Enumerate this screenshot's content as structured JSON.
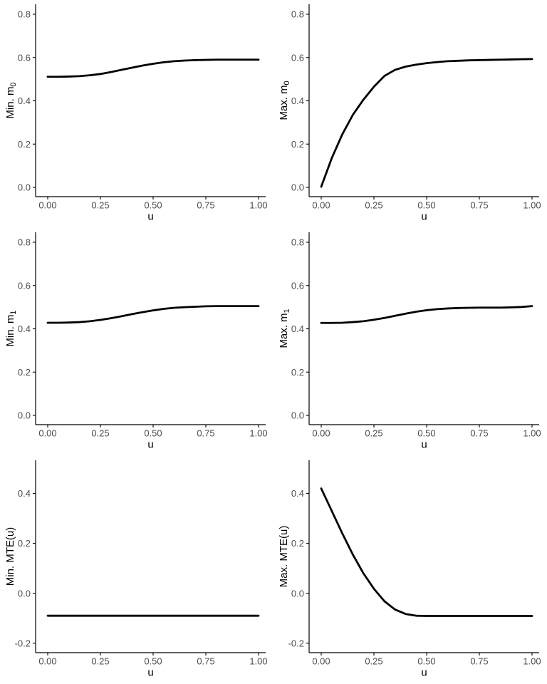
{
  "theme": {
    "background": "#ffffff",
    "curve_color": "#000000",
    "axis_line_color": "#000000",
    "tick_label_color": "#4d4d4d",
    "axis_title_color": "#000000"
  },
  "chart_data": [
    {
      "type": "line",
      "panel": "row1-col1",
      "ylabel": "Min. m",
      "ylabel_sub": "0",
      "xlabel": "u",
      "grid": false,
      "legend": false,
      "xdomain": [
        -0.0574,
        1.0338
      ],
      "ydomain": [
        -0.0428,
        0.846
      ],
      "x_ticks": {
        "values": [
          0,
          0.25,
          0.5,
          0.75,
          1
        ],
        "labels": [
          "0.00",
          "0.25",
          "0.50",
          "0.75",
          "1.00"
        ]
      },
      "y_ticks": {
        "values": [
          0,
          0.2,
          0.4,
          0.6,
          0.8
        ],
        "labels": [
          "0.0",
          "0.2",
          "0.4",
          "0.6",
          "0.8"
        ]
      },
      "x": [
        0,
        0.05,
        0.1,
        0.15,
        0.2,
        0.25,
        0.3,
        0.35,
        0.4,
        0.45,
        0.5,
        0.55,
        0.6,
        0.65,
        0.7,
        0.75,
        0.8,
        0.85,
        0.9,
        0.95,
        1
      ],
      "y": [
        0.511,
        0.511,
        0.512,
        0.514,
        0.518,
        0.524,
        0.533,
        0.543,
        0.553,
        0.563,
        0.571,
        0.578,
        0.583,
        0.586,
        0.588,
        0.589,
        0.59,
        0.59,
        0.59,
        0.59,
        0.59
      ]
    },
    {
      "type": "line",
      "panel": "row1-col2",
      "ylabel": "Max. m",
      "ylabel_sub": "0",
      "xlabel": "u",
      "grid": false,
      "legend": false,
      "xdomain": [
        -0.0574,
        1.0338
      ],
      "ydomain": [
        -0.0428,
        0.846
      ],
      "x_ticks": {
        "values": [
          0,
          0.25,
          0.5,
          0.75,
          1
        ],
        "labels": [
          "0.00",
          "0.25",
          "0.50",
          "0.75",
          "1.00"
        ]
      },
      "y_ticks": {
        "values": [
          0,
          0.2,
          0.4,
          0.6,
          0.8
        ],
        "labels": [
          "0.0",
          "0.2",
          "0.4",
          "0.6",
          "0.8"
        ]
      },
      "x": [
        0,
        0.05,
        0.1,
        0.15,
        0.2,
        0.25,
        0.3,
        0.35,
        0.4,
        0.45,
        0.5,
        0.55,
        0.6,
        0.65,
        0.7,
        0.75,
        0.8,
        0.85,
        0.9,
        0.95,
        1
      ],
      "y": [
        0.003,
        0.135,
        0.245,
        0.335,
        0.405,
        0.465,
        0.515,
        0.543,
        0.558,
        0.567,
        0.574,
        0.579,
        0.583,
        0.585,
        0.587,
        0.588,
        0.589,
        0.59,
        0.591,
        0.592,
        0.593
      ]
    },
    {
      "type": "line",
      "panel": "row2-col1",
      "ylabel": "Min. m",
      "ylabel_sub": "1",
      "xlabel": "u",
      "grid": false,
      "legend": false,
      "xdomain": [
        -0.0574,
        1.0338
      ],
      "ydomain": [
        -0.0428,
        0.846
      ],
      "x_ticks": {
        "values": [
          0,
          0.25,
          0.5,
          0.75,
          1
        ],
        "labels": [
          "0.00",
          "0.25",
          "0.50",
          "0.75",
          "1.00"
        ]
      },
      "y_ticks": {
        "values": [
          0,
          0.2,
          0.4,
          0.6,
          0.8
        ],
        "labels": [
          "0.0",
          "0.2",
          "0.4",
          "0.6",
          "0.8"
        ]
      },
      "x": [
        0,
        0.05,
        0.1,
        0.15,
        0.2,
        0.25,
        0.3,
        0.35,
        0.4,
        0.45,
        0.5,
        0.55,
        0.6,
        0.65,
        0.7,
        0.75,
        0.8,
        0.85,
        0.9,
        0.95,
        1
      ],
      "y": [
        0.428,
        0.428,
        0.429,
        0.431,
        0.435,
        0.441,
        0.449,
        0.458,
        0.468,
        0.477,
        0.485,
        0.492,
        0.497,
        0.5,
        0.502,
        0.504,
        0.505,
        0.505,
        0.505,
        0.505,
        0.505
      ]
    },
    {
      "type": "line",
      "panel": "row2-col2",
      "ylabel": "Max. m",
      "ylabel_sub": "1",
      "xlabel": "u",
      "grid": false,
      "legend": false,
      "xdomain": [
        -0.0574,
        1.0338
      ],
      "ydomain": [
        -0.0428,
        0.846
      ],
      "x_ticks": {
        "values": [
          0,
          0.25,
          0.5,
          0.75,
          1
        ],
        "labels": [
          "0.00",
          "0.25",
          "0.50",
          "0.75",
          "1.00"
        ]
      },
      "y_ticks": {
        "values": [
          0,
          0.2,
          0.4,
          0.6,
          0.8
        ],
        "labels": [
          "0.0",
          "0.2",
          "0.4",
          "0.6",
          "0.8"
        ]
      },
      "x": [
        0,
        0.05,
        0.1,
        0.15,
        0.2,
        0.25,
        0.3,
        0.35,
        0.4,
        0.45,
        0.5,
        0.55,
        0.6,
        0.65,
        0.7,
        0.75,
        0.8,
        0.85,
        0.9,
        0.95,
        1
      ],
      "y": [
        0.427,
        0.427,
        0.428,
        0.431,
        0.435,
        0.442,
        0.45,
        0.46,
        0.47,
        0.479,
        0.486,
        0.491,
        0.494,
        0.496,
        0.497,
        0.498,
        0.498,
        0.498,
        0.499,
        0.501,
        0.505
      ]
    },
    {
      "type": "line",
      "panel": "row3-col1",
      "ylabel": "Min. MTE(u)",
      "ylabel_sub": "",
      "xlabel": "u",
      "grid": false,
      "legend": false,
      "xdomain": [
        -0.0574,
        1.0338
      ],
      "ydomain": [
        -0.238,
        0.533
      ],
      "x_ticks": {
        "values": [
          0,
          0.25,
          0.5,
          0.75,
          1
        ],
        "labels": [
          "0.00",
          "0.25",
          "0.50",
          "0.75",
          "1.00"
        ]
      },
      "y_ticks": {
        "values": [
          -0.2,
          0,
          0.2,
          0.4
        ],
        "labels": [
          "-0.2",
          "0.0",
          "0.2",
          "0.4"
        ]
      },
      "x": [
        0,
        0.05,
        0.1,
        0.15,
        0.2,
        0.25,
        0.3,
        0.35,
        0.4,
        0.45,
        0.5,
        0.55,
        0.6,
        0.65,
        0.7,
        0.75,
        0.8,
        0.85,
        0.9,
        0.95,
        1
      ],
      "y": [
        -0.09,
        -0.09,
        -0.09,
        -0.09,
        -0.09,
        -0.09,
        -0.09,
        -0.09,
        -0.09,
        -0.09,
        -0.09,
        -0.09,
        -0.09,
        -0.09,
        -0.09,
        -0.09,
        -0.09,
        -0.09,
        -0.09,
        -0.09,
        -0.09
      ]
    },
    {
      "type": "line",
      "panel": "row3-col2",
      "ylabel": "Max. MTE(u)",
      "ylabel_sub": "",
      "xlabel": "u",
      "grid": false,
      "legend": false,
      "xdomain": [
        -0.0574,
        1.0338
      ],
      "ydomain": [
        -0.238,
        0.533
      ],
      "x_ticks": {
        "values": [
          0,
          0.25,
          0.5,
          0.75,
          1
        ],
        "labels": [
          "0.00",
          "0.25",
          "0.50",
          "0.75",
          "1.00"
        ]
      },
      "y_ticks": {
        "values": [
          -0.2,
          0,
          0.2,
          0.4
        ],
        "labels": [
          "-0.2",
          "0.0",
          "0.2",
          "0.4"
        ]
      },
      "x": [
        0,
        0.05,
        0.1,
        0.15,
        0.2,
        0.25,
        0.3,
        0.35,
        0.4,
        0.45,
        0.5,
        0.55,
        0.6,
        0.65,
        0.7,
        0.75,
        0.8,
        0.85,
        0.9,
        0.95,
        1
      ],
      "y": [
        0.42,
        0.33,
        0.24,
        0.155,
        0.08,
        0.018,
        -0.032,
        -0.065,
        -0.083,
        -0.09,
        -0.091,
        -0.091,
        -0.091,
        -0.091,
        -0.091,
        -0.091,
        -0.091,
        -0.091,
        -0.091,
        -0.091,
        -0.091
      ]
    }
  ]
}
